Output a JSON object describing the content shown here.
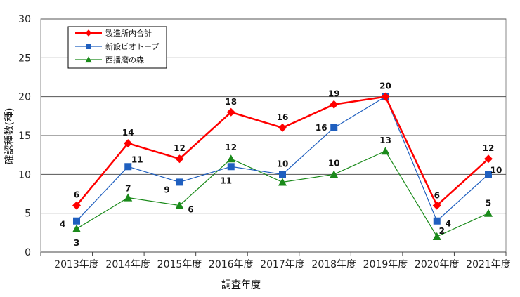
{
  "chart_data": {
    "type": "line",
    "categories": [
      "2013年度",
      "2014年度",
      "2015年度",
      "2016年度",
      "2017年度",
      "2018年度",
      "2019年度",
      "2020年度",
      "2021年度"
    ],
    "xlabel": "調査年度",
    "ylabel": "確認種数(種)",
    "ylim": [
      0,
      30
    ],
    "yticks": [
      0,
      5,
      10,
      15,
      20,
      25,
      30
    ],
    "grid": true,
    "legend_position": "top-left",
    "series": [
      {
        "name": "製造所内合計",
        "color": "#ff0000",
        "marker": "diamond",
        "values": [
          6,
          14,
          12,
          18,
          16,
          19,
          20,
          6,
          12
        ],
        "labels": [
          "6",
          "14",
          "12",
          "18",
          "16",
          "19",
          "20",
          "6",
          "12"
        ]
      },
      {
        "name": "新設ビオトープ",
        "color": "#1f5fbf",
        "marker": "square",
        "values": [
          4,
          11,
          9,
          11,
          10,
          16,
          20,
          4,
          10
        ],
        "labels": [
          "4",
          "11",
          "9",
          "11",
          "10",
          "16",
          "",
          "4",
          "10"
        ]
      },
      {
        "name": "西播磨の森",
        "color": "#1a8a1a",
        "marker": "triangle",
        "values": [
          3,
          7,
          6,
          12,
          9,
          10,
          13,
          2,
          5
        ],
        "labels": [
          "3",
          "7",
          "6",
          "12",
          "",
          "10",
          "13",
          "2",
          "5"
        ]
      }
    ]
  }
}
